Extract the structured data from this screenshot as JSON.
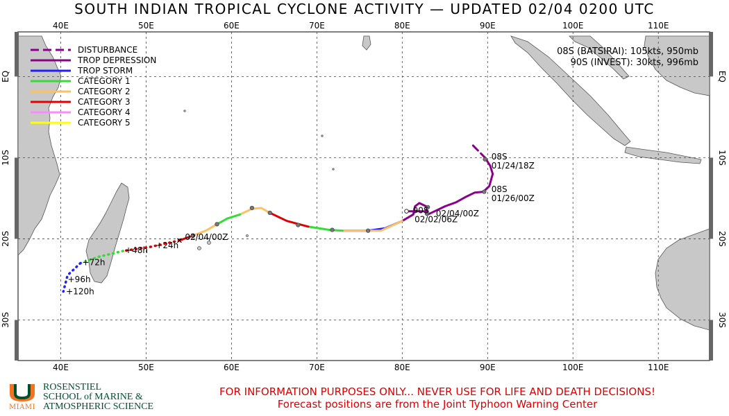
{
  "title": "SOUTH INDIAN TROPICAL CYCLONE ACTIVITY — UPDATED 02/04 0200 UTC",
  "axes": {
    "lon_labels": [
      "40E",
      "50E",
      "60E",
      "70E",
      "80E",
      "90E",
      "100E",
      "110E"
    ],
    "lon_values": [
      40,
      50,
      60,
      70,
      80,
      90,
      100,
      110
    ],
    "lat_labels": [
      "EQ",
      "10S",
      "20S",
      "30S"
    ],
    "lat_values": [
      0,
      -10,
      -20,
      -30
    ],
    "lon_range": [
      35,
      116
    ],
    "lat_range": [
      -35,
      5.5
    ],
    "grid": true
  },
  "legend": {
    "placement": "top-left",
    "items": [
      {
        "label": "DISTURBANCE",
        "color": "#8b008b",
        "dashed": true
      },
      {
        "label": "TROP DEPRESSION",
        "color": "#8b008b",
        "dashed": false
      },
      {
        "label": "TROP STORM",
        "color": "#2020ff",
        "dashed": false
      },
      {
        "label": "CATEGORY 1",
        "color": "#33dd33",
        "dashed": false
      },
      {
        "label": "CATEGORY 2",
        "color": "#ffc060",
        "dashed": false
      },
      {
        "label": "CATEGORY 3",
        "color": "#e00000",
        "dashed": false
      },
      {
        "label": "CATEGORY 4",
        "color": "#ff88ff",
        "dashed": false
      },
      {
        "label": "CATEGORY 5",
        "color": "#ffff00",
        "dashed": false
      }
    ]
  },
  "storm_info": [
    "08S (BATSIRAI): 105kts, 950mb",
    "90S (INVEST): 30kts, 996mb"
  ],
  "tracks": {
    "batsirai": {
      "segments": [
        {
          "class": "disturbance",
          "points": [
            [
              88.3,
              -8.5
            ],
            [
              89.7,
              -10
            ]
          ]
        },
        {
          "class": "depression",
          "points": [
            [
              89.7,
              -10
            ],
            [
              90.3,
              -11
            ],
            [
              90.6,
              -12
            ],
            [
              90.2,
              -13.5
            ],
            [
              89.5,
              -14.2
            ],
            [
              88.5,
              -14.3
            ],
            [
              87.5,
              -14.8
            ],
            [
              86.3,
              -15.5
            ],
            [
              85.0,
              -16.0
            ],
            [
              83.8,
              -16.6
            ],
            [
              83.0,
              -17.0
            ],
            [
              82.8,
              -16.0
            ],
            [
              82.0,
              -15.6
            ],
            [
              81.5,
              -16.0
            ],
            [
              81.3,
              -17.0
            ],
            [
              80.0,
              -17.8
            ]
          ]
        },
        {
          "class": "storm",
          "points": [
            [
              80.0,
              -17.8
            ],
            [
              78.0,
              -18.7
            ],
            [
              76.0,
              -19.0
            ],
            [
              73.0,
              -19.0
            ]
          ]
        },
        {
          "class": "cat2",
          "points": [
            [
              73.0,
              -19.0
            ],
            [
              77.5,
              -19.0
            ],
            [
              80.0,
              -17.8
            ]
          ]
        },
        {
          "class": "cat1",
          "points": [
            [
              73.0,
              -19.0
            ],
            [
              71.5,
              -18.9
            ],
            [
              69.0,
              -18.5
            ]
          ]
        },
        {
          "class": "cat3",
          "points": [
            [
              69.0,
              -18.5
            ],
            [
              66.5,
              -17.8
            ],
            [
              64.5,
              -16.8
            ]
          ]
        },
        {
          "class": "cat2",
          "points": [
            [
              64.5,
              -16.8
            ],
            [
              63.5,
              -16.2
            ],
            [
              62.4,
              -16.3
            ],
            [
              61.0,
              -17.0
            ]
          ]
        },
        {
          "class": "cat1",
          "points": [
            [
              61.0,
              -17.0
            ],
            [
              59.5,
              -17.5
            ],
            [
              58.3,
              -18.2
            ]
          ]
        },
        {
          "class": "cat2",
          "points": [
            [
              58.3,
              -18.2
            ],
            [
              57.0,
              -19.0
            ],
            [
              55.5,
              -19.6
            ]
          ]
        },
        {
          "class": "cat3",
          "points": [
            [
              55.5,
              -19.6
            ],
            [
              53.9,
              -20.2
            ]
          ]
        }
      ],
      "markers": [
        [
          89.7,
          -10.2
        ],
        [
          89.6,
          -14.2
        ],
        [
          83.0,
          -16.1
        ],
        [
          82.9,
          -16.9
        ],
        [
          76.0,
          -19.0
        ],
        [
          71.8,
          -18.9
        ],
        [
          67.8,
          -18.3
        ],
        [
          64.5,
          -16.8
        ],
        [
          62.4,
          -16.2
        ],
        [
          58.3,
          -18.2
        ],
        [
          55.5,
          -19.6
        ]
      ],
      "forecast": [
        {
          "class": "cat3",
          "points": [
            [
              53.9,
              -20.2
            ],
            [
              50.5,
              -21.0
            ],
            [
              47.3,
              -21.5
            ]
          ]
        },
        {
          "class": "cat1",
          "points": [
            [
              47.3,
              -21.5
            ],
            [
              44.5,
              -22.2
            ],
            [
              42.3,
              -23.0
            ]
          ]
        },
        {
          "class": "storm",
          "points": [
            [
              42.3,
              -23.0
            ],
            [
              40.8,
              -24.5
            ],
            [
              40.3,
              -26.5
            ]
          ]
        }
      ],
      "forecast_labels": [
        "+24h",
        "+48h",
        "+72h",
        "+96h",
        "+120h"
      ],
      "forecast_label_pos": [
        [
          50.8,
          -20.8
        ],
        [
          47.2,
          -21.4
        ],
        [
          42.2,
          -22.9
        ],
        [
          40.5,
          -25.0
        ],
        [
          40.3,
          -26.5
        ]
      ]
    },
    "invest": {
      "segments": [
        {
          "class": "depression",
          "points": [
            [
              80.5,
              -16.6
            ],
            [
              83.0,
              -16.6
            ]
          ]
        }
      ],
      "markers": [
        [
          80.5,
          -16.6
        ]
      ]
    }
  },
  "track_labels": [
    {
      "text": "08S",
      "lon": 90.2,
      "lat": -9.9
    },
    {
      "text": "01/24/18Z",
      "lon": 90.2,
      "lat": -11.0
    },
    {
      "text": "08S",
      "lon": 90.2,
      "lat": -13.9
    },
    {
      "text": "01/26/00Z",
      "lon": 90.2,
      "lat": -15.0
    },
    {
      "text": "90S",
      "lon": 81.0,
      "lat": -16.5
    },
    {
      "text": "02/04/00Z",
      "lon": 83.7,
      "lat": -16.9
    },
    {
      "text": "02/02/06Z",
      "lon": 81.2,
      "lat": -17.6
    },
    {
      "text": "02/04/00Z",
      "lon": 54.3,
      "lat": -19.8
    }
  ],
  "logo": {
    "letter": "U",
    "miami": "MIAMI",
    "line1": "ROSENSTIEL",
    "line2": "SCHOOL of MARINE &",
    "line3": "ATMOSPHERIC SCIENCE"
  },
  "disclaimer": {
    "line1": "FOR INFORMATION PURPOSES ONLY... NEVER USE FOR LIFE AND DEATH DECISIONS!",
    "line2": "Forecast positions are from the Joint Typhoon Warning Center"
  },
  "colors": {
    "land": "#c8c8c8",
    "coast": "#555555",
    "frame": "#555555",
    "disclaimer": "#e00000",
    "logo_green": "#005030",
    "logo_orange": "#f47321"
  }
}
